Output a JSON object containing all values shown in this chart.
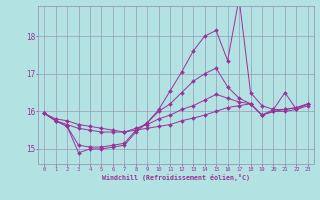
{
  "xlabel": "Windchill (Refroidissement éolien,°C)",
  "bg_color": "#b2e2e2",
  "grid_color": "#9999bb",
  "line_color": "#993399",
  "xlim": [
    -0.5,
    23.5
  ],
  "ylim": [
    14.6,
    18.8
  ],
  "xticks": [
    0,
    1,
    2,
    3,
    4,
    5,
    6,
    7,
    8,
    9,
    10,
    11,
    12,
    13,
    14,
    15,
    16,
    17,
    18,
    19,
    20,
    21,
    22,
    23
  ],
  "yticks": [
    15,
    16,
    17,
    18
  ],
  "s1": [
    15.95,
    15.8,
    15.75,
    15.65,
    15.6,
    15.55,
    15.5,
    15.45,
    15.5,
    15.55,
    15.6,
    15.65,
    15.75,
    15.82,
    15.9,
    16.0,
    16.1,
    16.15,
    16.2,
    15.9,
    16.0,
    16.0,
    16.05,
    16.15
  ],
  "s2": [
    15.95,
    15.75,
    15.65,
    15.55,
    15.5,
    15.45,
    15.45,
    15.45,
    15.55,
    15.65,
    15.8,
    15.9,
    16.05,
    16.15,
    16.3,
    16.45,
    16.35,
    16.25,
    16.2,
    15.9,
    16.0,
    16.05,
    16.1,
    16.2
  ],
  "s3": [
    15.95,
    15.75,
    15.6,
    15.1,
    15.05,
    15.05,
    15.1,
    15.15,
    15.5,
    15.7,
    16.0,
    16.2,
    16.5,
    16.8,
    17.0,
    17.15,
    16.65,
    16.35,
    16.2,
    15.9,
    16.05,
    16.05,
    16.1,
    16.2
  ],
  "s4": [
    15.95,
    15.75,
    15.6,
    14.9,
    15.0,
    15.0,
    15.05,
    15.1,
    15.45,
    15.7,
    16.05,
    16.55,
    17.05,
    17.6,
    18.0,
    18.15,
    17.35,
    19.0,
    16.5,
    16.15,
    16.05,
    16.5,
    16.05,
    16.2
  ]
}
